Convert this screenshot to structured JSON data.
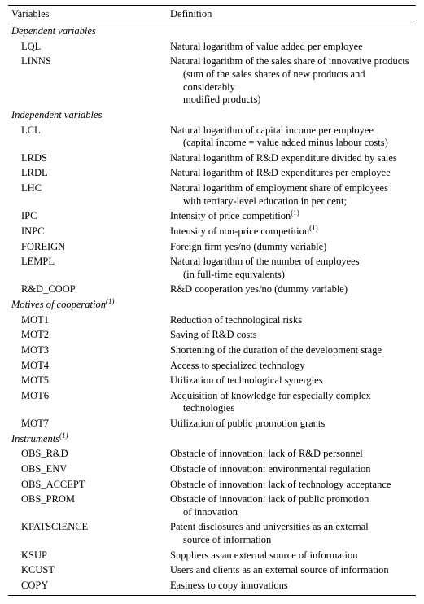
{
  "columns": {
    "var": "Variables",
    "def": "Definition"
  },
  "sections": {
    "dep": "Dependent variables",
    "ind": "Independent variables",
    "mot": "Motives of cooperation",
    "inst": "Instruments"
  },
  "sup": "(1)",
  "vars": {
    "LQL": {
      "name": "LQL",
      "def": "Natural logarithm of value added per employee"
    },
    "LINNS": {
      "name": "LINNS",
      "def": "Natural logarithm of the sales share of innovative products",
      "def2": "(sum of the sales shares of new products and considerably",
      "def3": "modified products)"
    },
    "LCL": {
      "name": "LCL",
      "def": "Natural logarithm of capital income per employee",
      "def2": "(capital income = value added minus labour costs)"
    },
    "LRDS": {
      "name": "LRDS",
      "def": "Natural logarithm of R&D expenditure divided by sales"
    },
    "LRDL": {
      "name": "LRDL",
      "def": "Natural logarithm of R&D expenditures per employee"
    },
    "LHC": {
      "name": "LHC",
      "def": "Natural logarithm of employment share of employees",
      "def2": "with tertiary-level education in per cent;"
    },
    "IPC": {
      "name": "IPC",
      "def": "Intensity of price competition"
    },
    "INPC": {
      "name": "INPC",
      "def": "Intensity of non-price competition"
    },
    "FOREIGN": {
      "name": "FOREIGN",
      "def": "Foreign firm yes/no (dummy variable)"
    },
    "LEMPL": {
      "name": "LEMPL",
      "def": "Natural logarithm of the number of employees",
      "def2": "(in full-time equivalents)"
    },
    "RDCOOP": {
      "name": "R&D_COOP",
      "def": "R&D cooperation yes/no (dummy variable)"
    },
    "MOT1": {
      "name": "MOT1",
      "def": "Reduction of technological risks"
    },
    "MOT2": {
      "name": "MOT2",
      "def": "Saving of R&D costs"
    },
    "MOT3": {
      "name": "MOT3",
      "def": "Shortening of the duration of the development stage"
    },
    "MOT4": {
      "name": "MOT4",
      "def": "Access to specialized technology"
    },
    "MOT5": {
      "name": "MOT5",
      "def": "Utilization of technological synergies"
    },
    "MOT6": {
      "name": "MOT6",
      "def": "Acquisition of knowledge for especially complex",
      "def2": "technologies"
    },
    "MOT7": {
      "name": "MOT7",
      "def": "Utilization of public promotion grants"
    },
    "OBS_RD": {
      "name": "OBS_R&D",
      "def": "Obstacle of innovation: lack of R&D personnel"
    },
    "OBS_ENV": {
      "name": "OBS_ENV",
      "def": "Obstacle of innovation: environmental regulation"
    },
    "OBS_ACCEPT": {
      "name": "OBS_ACCEPT",
      "def": "Obstacle of innovation: lack of technology acceptance"
    },
    "OBS_PROM": {
      "name": "OBS_PROM",
      "def": "Obstacle of innovation: lack of public promotion",
      "def2": "of innovation"
    },
    "KPATSCIENCE": {
      "name": "KPATSCIENCE",
      "def": "Patent disclosures and universities as an external",
      "def2": "source of information"
    },
    "KSUP": {
      "name": "KSUP",
      "def": "Suppliers as an external source of information"
    },
    "KCUST": {
      "name": "KCUST",
      "def": "Users and clients as an external source of information"
    },
    "COPY": {
      "name": "COPY",
      "def": "Easiness to copy innovations"
    }
  }
}
